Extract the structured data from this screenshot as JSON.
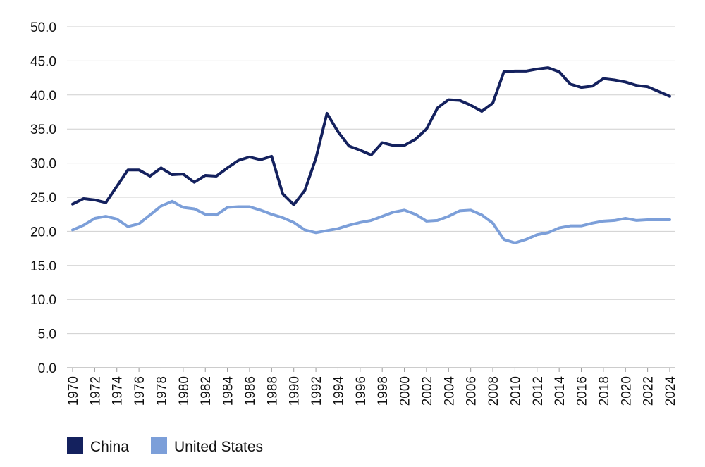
{
  "chart_data": {
    "type": "line",
    "title": "",
    "xlabel": "",
    "ylabel": "",
    "ylim": [
      0,
      50
    ],
    "y_ticks": [
      "50.0",
      "45.0",
      "40.0",
      "35.0",
      "30.0",
      "25.0",
      "20.0",
      "15.0",
      "10.0",
      "5.0",
      "0.0"
    ],
    "x_ticks": [
      "1970",
      "1972",
      "1974",
      "1976",
      "1978",
      "1980",
      "1982",
      "1984",
      "1986",
      "1988",
      "1990",
      "1992",
      "1994",
      "1996",
      "1998",
      "2000",
      "2002",
      "2004",
      "2006",
      "2008",
      "2010",
      "2012",
      "2014",
      "2016",
      "2018",
      "2020",
      "2022",
      "2024"
    ],
    "grid": true,
    "legend_position": "bottom-left",
    "x": [
      1970,
      1971,
      1972,
      1973,
      1974,
      1975,
      1976,
      1977,
      1978,
      1979,
      1980,
      1981,
      1982,
      1983,
      1984,
      1985,
      1986,
      1987,
      1988,
      1989,
      1990,
      1991,
      1992,
      1993,
      1994,
      1995,
      1996,
      1997,
      1998,
      1999,
      2000,
      2001,
      2002,
      2003,
      2004,
      2005,
      2006,
      2007,
      2008,
      2009,
      2010,
      2011,
      2012,
      2013,
      2014,
      2015,
      2016,
      2017,
      2018,
      2019,
      2020,
      2021,
      2022,
      2023,
      2024
    ],
    "series": [
      {
        "name": "China",
        "color": "#14215e",
        "values": [
          24.0,
          24.8,
          24.6,
          24.2,
          26.6,
          29.0,
          29.0,
          28.1,
          29.3,
          28.3,
          28.4,
          27.2,
          28.2,
          28.1,
          29.3,
          30.4,
          30.9,
          30.5,
          31.0,
          25.5,
          23.9,
          26.0,
          30.7,
          37.3,
          34.6,
          32.5,
          31.9,
          31.2,
          33.0,
          32.6,
          32.6,
          33.5,
          35.0,
          38.1,
          39.3,
          39.2,
          38.5,
          37.6,
          38.8,
          43.4,
          43.5,
          43.5,
          43.8,
          44.0,
          43.4,
          41.6,
          41.1,
          41.3,
          42.4,
          42.2,
          41.9,
          41.4,
          41.2,
          40.5,
          39.8
        ]
      },
      {
        "name": "United States",
        "color": "#7c9fd9",
        "values": [
          20.2,
          20.9,
          21.9,
          22.2,
          21.8,
          20.7,
          21.1,
          22.4,
          23.7,
          24.4,
          23.5,
          23.3,
          22.5,
          22.4,
          23.5,
          23.6,
          23.6,
          23.1,
          22.5,
          22.0,
          21.3,
          20.2,
          19.8,
          20.1,
          20.4,
          20.9,
          21.3,
          21.6,
          22.2,
          22.8,
          23.1,
          22.5,
          21.5,
          21.6,
          22.2,
          23.0,
          23.1,
          22.4,
          21.2,
          18.8,
          18.3,
          18.8,
          19.5,
          19.8,
          20.5,
          20.8,
          20.8,
          21.2,
          21.5,
          21.6,
          21.9,
          21.6,
          21.7,
          21.7,
          21.7
        ]
      }
    ]
  }
}
